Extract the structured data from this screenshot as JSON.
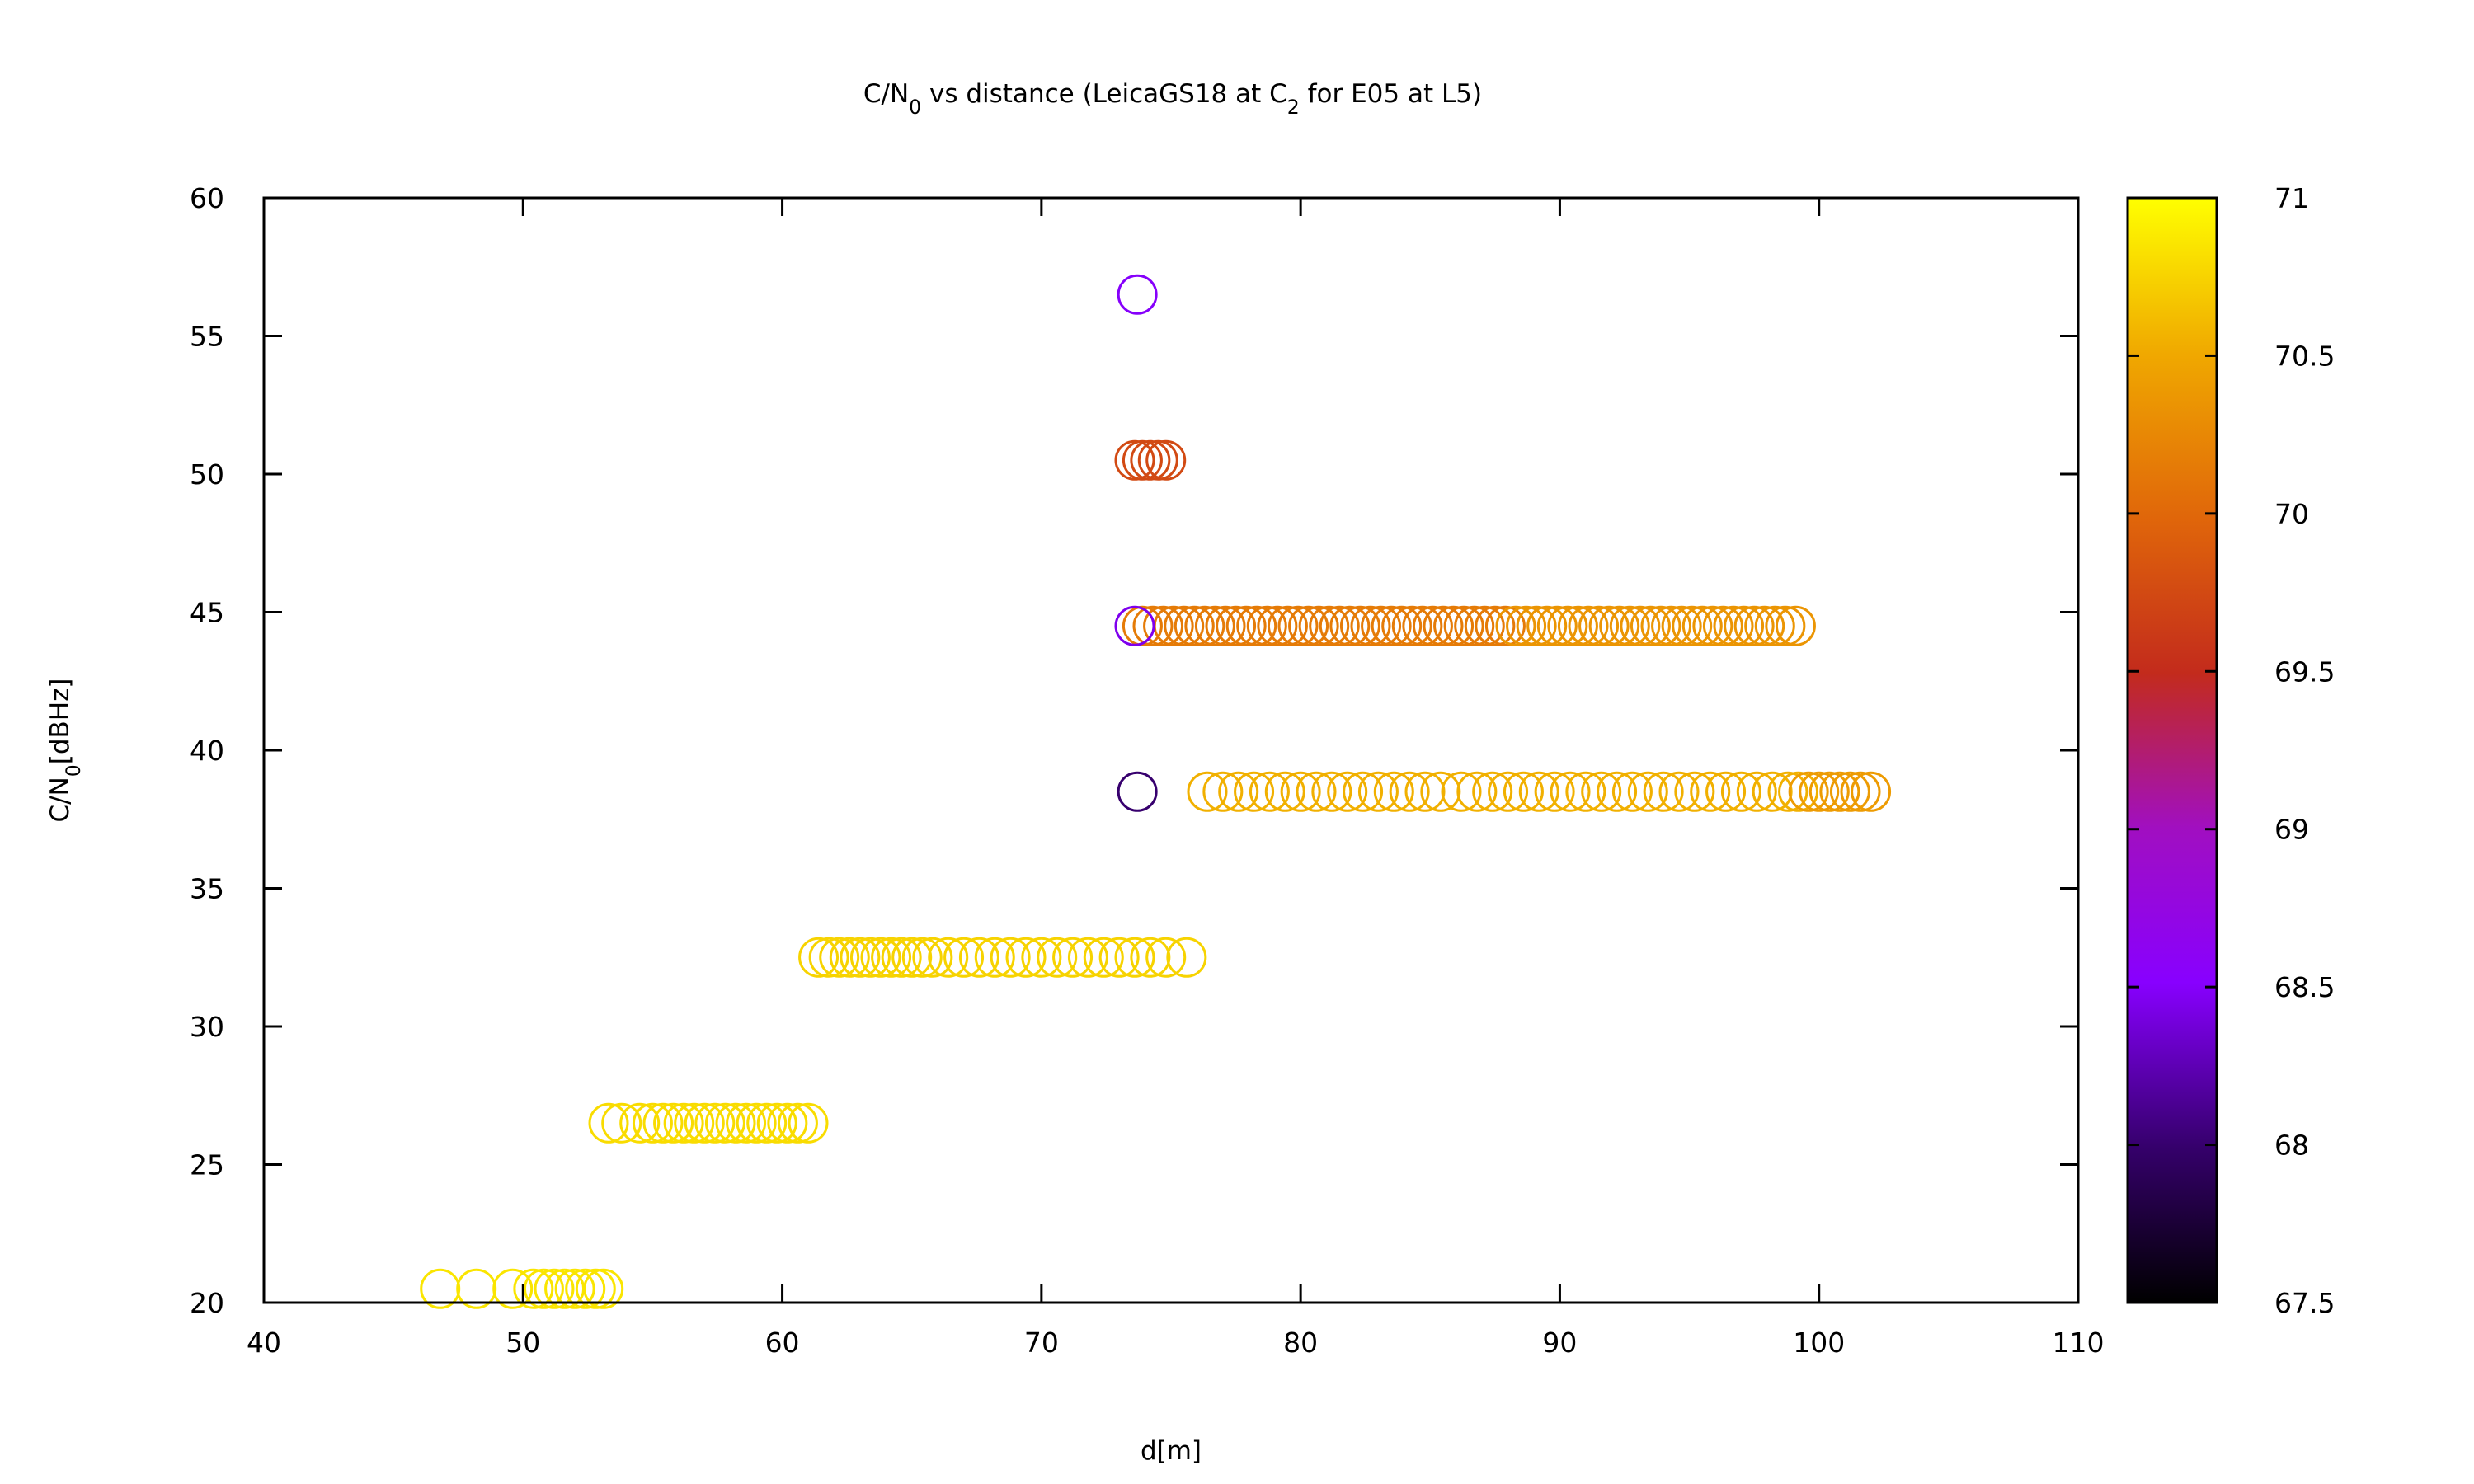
{
  "chart_data": {
    "type": "scatter",
    "title": {
      "parts": [
        {
          "text": "C/N"
        },
        {
          "text": "0",
          "sub": true
        },
        {
          "text": " vs distance (LeicaGS18 at C"
        },
        {
          "text": "2",
          "sub": true
        },
        {
          "text": " for E05 at L5)"
        }
      ]
    },
    "xlabel": "d[m]",
    "ylabel": {
      "parts": [
        {
          "text": "C/N"
        },
        {
          "text": "0",
          "sub": true
        },
        {
          "text": "[dBHz]"
        }
      ]
    },
    "xlim": [
      40,
      110
    ],
    "ylim": [
      20,
      60
    ],
    "xticks": [
      "40",
      "50",
      "60",
      "70",
      "80",
      "90",
      "100",
      "110"
    ],
    "yticks": [
      "20",
      "25",
      "30",
      "35",
      "40",
      "45",
      "50",
      "55",
      "60"
    ],
    "grid": false,
    "legend": "none",
    "marker": "open-circle",
    "colorbar": {
      "range": [
        67.5,
        71
      ],
      "ticks": [
        "67.5",
        "68",
        "68.5",
        "69",
        "69.5",
        "70",
        "70.5",
        "71"
      ],
      "palette": [
        [
          0,
          "#000000"
        ],
        [
          0.14,
          "#35006b"
        ],
        [
          0.29,
          "#8800ff"
        ],
        [
          0.43,
          "#a10fc0"
        ],
        [
          0.57,
          "#c32b1c"
        ],
        [
          0.71,
          "#e0660a"
        ],
        [
          0.86,
          "#f0a900"
        ],
        [
          1,
          "#ffff00"
        ]
      ]
    },
    "series": [
      {
        "y": 20.5,
        "c": 70.85,
        "x": [
          46.8,
          48.2,
          49.6,
          50.4,
          50.8,
          51.2,
          51.6,
          52.0,
          52.4,
          52.8,
          53.1
        ]
      },
      {
        "y": 26.5,
        "c": 70.8,
        "x": [
          53.3,
          53.8,
          54.5,
          55.0,
          55.4,
          55.8,
          56.2,
          56.6,
          57.0,
          57.4,
          57.8,
          58.2,
          58.6,
          59.0,
          59.4,
          59.8,
          60.2,
          60.6,
          61.0
        ]
      },
      {
        "y": 32.5,
        "c": 70.75,
        "x": [
          61.4,
          61.8,
          62.2,
          62.6,
          63.0,
          63.4,
          63.8,
          64.2,
          64.6,
          65.0,
          65.4,
          65.8,
          66.4,
          67.0,
          67.6,
          68.2,
          68.8,
          69.4,
          70.0,
          70.6,
          71.2,
          71.8,
          72.4,
          73.0,
          73.6,
          74.2,
          74.8,
          75.6
        ]
      },
      {
        "y": 38.5,
        "c": 70.55,
        "x": [
          76.4,
          77.0,
          77.6,
          78.2,
          78.8,
          79.4,
          80.0,
          80.6,
          81.2,
          81.8,
          82.4,
          83.0,
          83.6,
          84.2,
          84.8,
          85.4,
          86.2,
          86.8,
          87.4,
          88.0,
          88.6,
          89.2,
          89.8,
          90.4,
          91.0,
          91.6,
          92.2,
          92.8,
          93.4,
          94.0,
          94.6,
          95.2,
          95.8,
          96.4,
          97.0,
          97.6,
          98.2,
          98.8,
          99.2
        ]
      },
      {
        "y": 38.5,
        "c": 70.4,
        "x": [
          99.6,
          100.0,
          100.4,
          100.8,
          101.2,
          101.6,
          102.0
        ]
      },
      {
        "y": 44.5,
        "c": 70.15,
        "x": [
          73.9,
          74.3,
          74.7,
          75.1,
          75.5,
          75.9,
          76.3,
          76.7,
          77.1,
          77.5,
          77.9,
          78.3,
          78.7,
          79.1,
          79.5,
          79.9,
          80.3,
          80.7,
          81.1,
          81.5,
          81.9,
          82.3,
          82.7,
          83.1,
          83.5,
          83.9,
          84.3,
          84.7,
          85.1,
          85.5,
          85.9,
          86.3,
          86.7,
          87.1,
          87.5,
          87.9
        ]
      },
      {
        "y": 44.5,
        "c": 70.35,
        "x": [
          88.3,
          88.7,
          89.1,
          89.5,
          89.9,
          90.3,
          90.7,
          91.1,
          91.5,
          91.9,
          92.3,
          92.7,
          93.1,
          93.5,
          93.9,
          94.3,
          94.7,
          95.1,
          95.5,
          95.9,
          96.3,
          96.7,
          97.1,
          97.5,
          97.9,
          98.3,
          98.7,
          99.1
        ]
      },
      {
        "y": 50.5,
        "c": 69.75,
        "x": [
          73.6,
          73.9,
          74.2,
          74.5,
          74.8
        ]
      },
      {
        "y": 56.5,
        "c": 68.5,
        "x": [
          73.7
        ]
      },
      {
        "y": 44.5,
        "c": 68.45,
        "x": [
          73.6
        ]
      },
      {
        "y": 38.5,
        "c": 68.0,
        "x": [
          73.7
        ]
      }
    ]
  }
}
